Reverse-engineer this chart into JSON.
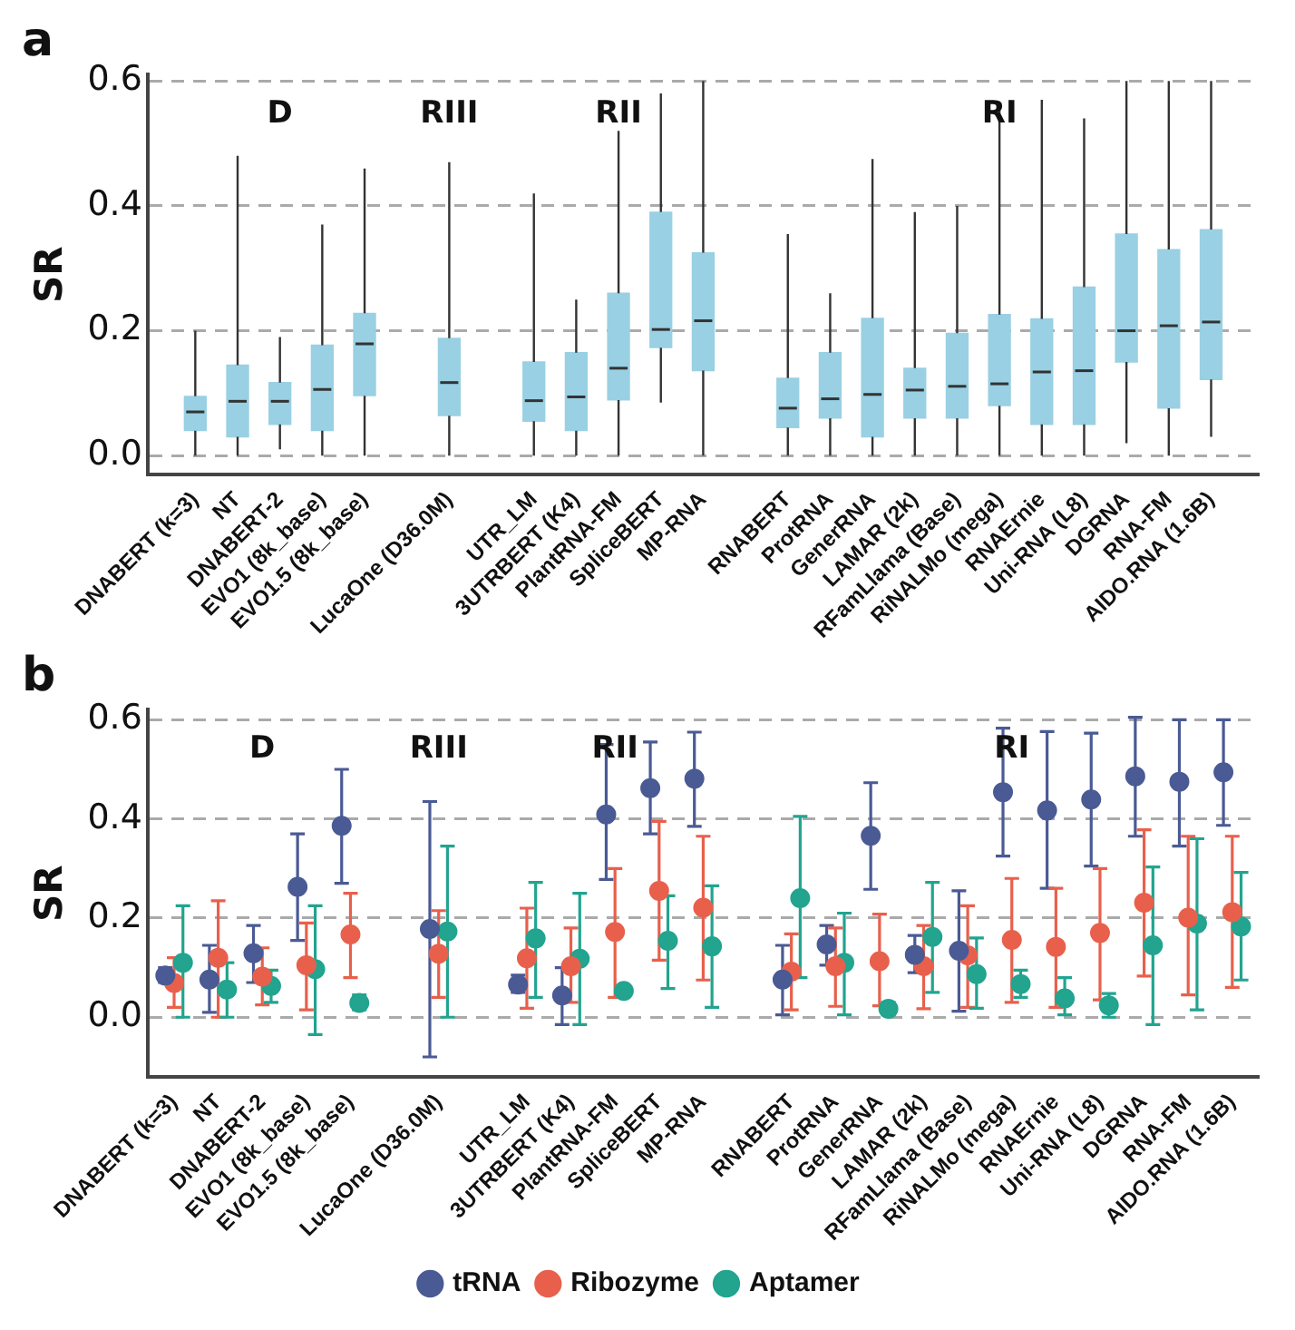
{
  "chart_data": [
    {
      "type": "box",
      "title": "a",
      "ylabel": "SR",
      "color": "#99d0e3",
      "grid": "y",
      "ylim": [
        -0.03,
        0.61
      ],
      "yticks": [
        {
          "value": 0,
          "label": "0.0"
        },
        {
          "value": 0.2,
          "label": "0.2"
        },
        {
          "value": 0.4,
          "label": "0.4"
        },
        {
          "value": 0.6,
          "label": "0.6"
        }
      ],
      "categories": [
        "DNABERT (k=3)",
        "NT",
        "DNABERT-2",
        "EVO1 (8k_base)",
        "EVO1.5 (8k_base)",
        null,
        "LucaOne (D36.0M)",
        null,
        "UTR_LM",
        "3UTRBERT (K4)",
        "PlantRNA-FM",
        "SpliceBERT",
        "MP-RNA",
        null,
        "RNABERT",
        "ProtRNA",
        "GenerRNA",
        "LAMAR (2k)",
        "RFamLlama (Base)",
        "RiNALMo (mega)",
        "RNAErnie",
        "Uni-RNA (L8)",
        "DGRNA",
        "RNA-FM",
        "AIDO.RNA (1.6B)"
      ],
      "boxes": [
        {
          "low": 0.0,
          "q1": 0.04,
          "median": 0.07,
          "q3": 0.095,
          "high": 0.2
        },
        {
          "low": 0.0,
          "q1": 0.03,
          "median": 0.087,
          "q3": 0.145,
          "high": 0.48
        },
        {
          "low": 0.01,
          "q1": 0.05,
          "median": 0.087,
          "q3": 0.117,
          "high": 0.19
        },
        {
          "low": 0.0,
          "q1": 0.04,
          "median": 0.106,
          "q3": 0.177,
          "high": 0.37
        },
        {
          "low": 0.0,
          "q1": 0.096,
          "median": 0.179,
          "q3": 0.228,
          "high": 0.46
        },
        null,
        {
          "low": 0.0,
          "q1": 0.064,
          "median": 0.117,
          "q3": 0.188,
          "high": 0.47
        },
        null,
        {
          "low": 0.0,
          "q1": 0.055,
          "median": 0.088,
          "q3": 0.15,
          "high": 0.42
        },
        {
          "low": 0.0,
          "q1": 0.04,
          "median": 0.094,
          "q3": 0.165,
          "high": 0.25
        },
        {
          "low": 0.0,
          "q1": 0.089,
          "median": 0.14,
          "q3": 0.26,
          "high": 0.52
        },
        {
          "low": 0.085,
          "q1": 0.173,
          "median": 0.202,
          "q3": 0.39,
          "high": 0.58
        },
        {
          "low": 0.0,
          "q1": 0.136,
          "median": 0.216,
          "q3": 0.325,
          "high": 0.6
        },
        null,
        {
          "low": 0.0,
          "q1": 0.045,
          "median": 0.076,
          "q3": 0.124,
          "high": 0.355
        },
        {
          "low": 0.0,
          "q1": 0.06,
          "median": 0.091,
          "q3": 0.165,
          "high": 0.26
        },
        {
          "low": 0.0,
          "q1": 0.03,
          "median": 0.098,
          "q3": 0.22,
          "high": 0.475
        },
        {
          "low": 0.0,
          "q1": 0.06,
          "median": 0.105,
          "q3": 0.14,
          "high": 0.39
        },
        {
          "low": 0.0,
          "q1": 0.06,
          "median": 0.111,
          "q3": 0.196,
          "high": 0.4
        },
        {
          "low": 0.0,
          "q1": 0.08,
          "median": 0.115,
          "q3": 0.226,
          "high": 0.556
        },
        {
          "low": 0.0,
          "q1": 0.05,
          "median": 0.134,
          "q3": 0.219,
          "high": 0.57
        },
        {
          "low": 0.0,
          "q1": 0.05,
          "median": 0.136,
          "q3": 0.27,
          "high": 0.54
        },
        {
          "low": 0.02,
          "q1": 0.15,
          "median": 0.2,
          "q3": 0.355,
          "high": 0.6
        },
        {
          "low": 0.0,
          "q1": 0.076,
          "median": 0.208,
          "q3": 0.33,
          "high": 0.6
        },
        {
          "low": 0.03,
          "q1": 0.122,
          "median": 0.214,
          "q3": 0.362,
          "high": 0.6
        }
      ],
      "annotations": [
        "D",
        "RIII",
        "RII",
        "RI"
      ]
    },
    {
      "type": "scatter",
      "title": "b",
      "ylabel": "SR",
      "grid": "y",
      "legend": "bottom",
      "marker": "circle",
      "ylim": [
        -0.12,
        0.62
      ],
      "yticks": [
        {
          "value": 0,
          "label": "0.0"
        },
        {
          "value": 0.2,
          "label": "0.2"
        },
        {
          "value": 0.4,
          "label": "0.4"
        },
        {
          "value": 0.6,
          "label": "0.6"
        }
      ],
      "categories": [
        "DNABERT (k=3)",
        "NT",
        "DNABERT-2",
        "EVO1 (8k_base)",
        "EVO1.5 (8k_base)",
        null,
        "LucaOne (D36.0M)",
        null,
        "UTR_LM",
        "3UTRBERT (K4)",
        "PlantRNA-FM",
        "SpliceBERT",
        "MP-RNA",
        null,
        "RNABERT",
        "ProtRNA",
        "GenerRNA",
        "LAMAR (2k)",
        "RFamLlama (Base)",
        "RiNALMo (mega)",
        "RNAErnie",
        "Uni-RNA (L8)",
        "DGRNA",
        "RNA-FM",
        "AIDO.RNA (1.6B)"
      ],
      "series": [
        {
          "name": "tRNA",
          "color": "#4a5a94",
          "values": [
            0.084,
            0.076,
            0.129,
            0.263,
            0.386,
            null,
            0.178,
            null,
            0.066,
            0.044,
            0.409,
            0.462,
            0.481,
            null,
            0.076,
            0.147,
            0.366,
            0.126,
            0.134,
            0.454,
            0.417,
            0.439,
            0.486,
            0.475,
            0.494
          ],
          "errors": [
            [
              0.07,
              0.1
            ],
            [
              0.01,
              0.145
            ],
            [
              0.07,
              0.185
            ],
            [
              0.155,
              0.37
            ],
            [
              0.27,
              0.5
            ],
            null,
            [
              -0.08,
              0.435
            ],
            null,
            [
              0.05,
              0.085
            ],
            [
              -0.015,
              0.1
            ],
            [
              0.278,
              0.55
            ],
            [
              0.37,
              0.555
            ],
            [
              0.385,
              0.575
            ],
            null,
            [
              0.005,
              0.145
            ],
            [
              0.105,
              0.185
            ],
            [
              0.258,
              0.473
            ],
            [
              0.09,
              0.165
            ],
            [
              0.012,
              0.255
            ],
            [
              0.325,
              0.583
            ],
            [
              0.26,
              0.576
            ],
            [
              0.305,
              0.573
            ],
            [
              0.365,
              0.605
            ],
            [
              0.345,
              0.6
            ],
            [
              0.387,
              0.6
            ]
          ]
        },
        {
          "name": "Ribozyme",
          "color": "#e8604c",
          "values": [
            0.069,
            0.12,
            0.082,
            0.105,
            0.167,
            null,
            0.128,
            null,
            0.119,
            0.103,
            0.172,
            0.255,
            0.221,
            null,
            0.092,
            0.103,
            0.113,
            0.103,
            0.125,
            0.156,
            0.142,
            0.17,
            0.231,
            0.201,
            0.212
          ],
          "errors": [
            [
              0.02,
              0.12
            ],
            [
              0.0,
              0.235
            ],
            [
              0.025,
              0.14
            ],
            [
              0.015,
              0.19
            ],
            [
              0.08,
              0.25
            ],
            null,
            [
              0.04,
              0.215
            ],
            null,
            [
              0.018,
              0.22
            ],
            [
              0.03,
              0.18
            ],
            [
              0.04,
              0.3
            ],
            [
              0.115,
              0.395
            ],
            [
              0.075,
              0.365
            ],
            null,
            [
              0.015,
              0.168
            ],
            [
              0.022,
              0.18
            ],
            [
              0.023,
              0.208
            ],
            [
              0.017,
              0.185
            ],
            [
              0.02,
              0.225
            ],
            [
              0.03,
              0.28
            ],
            [
              0.02,
              0.26
            ],
            [
              0.035,
              0.3
            ],
            [
              0.083,
              0.378
            ],
            [
              0.045,
              0.365
            ],
            [
              0.06,
              0.365
            ]
          ]
        },
        {
          "name": "Aptamer",
          "color": "#22a48f",
          "values": [
            0.11,
            0.056,
            0.063,
            0.097,
            0.029,
            null,
            0.173,
            null,
            0.159,
            0.118,
            0.053,
            0.154,
            0.143,
            null,
            0.24,
            0.11,
            0.017,
            0.162,
            0.087,
            0.067,
            0.038,
            0.024,
            0.145,
            0.189,
            0.183
          ],
          "errors": [
            [
              0.0,
              0.225
            ],
            [
              0.0,
              0.11
            ],
            [
              0.03,
              0.095
            ],
            [
              -0.035,
              0.225
            ],
            [
              0.015,
              0.045
            ],
            null,
            [
              0.0,
              0.345
            ],
            null,
            [
              0.04,
              0.272
            ],
            [
              -0.015,
              0.25
            ],
            null,
            [
              0.058,
              0.245
            ],
            [
              0.02,
              0.265
            ],
            null,
            [
              0.08,
              0.405
            ],
            [
              0.005,
              0.21
            ],
            [
              0.005,
              0.03
            ],
            [
              0.05,
              0.272
            ],
            [
              0.018,
              0.16
            ],
            [
              0.04,
              0.095
            ],
            [
              0.005,
              0.08
            ],
            [
              0.0,
              0.048
            ],
            [
              -0.015,
              0.303
            ],
            [
              0.015,
              0.36
            ],
            [
              0.075,
              0.292
            ]
          ]
        }
      ],
      "annotations": [
        "D",
        "RIII",
        "RII",
        "RI"
      ]
    }
  ]
}
